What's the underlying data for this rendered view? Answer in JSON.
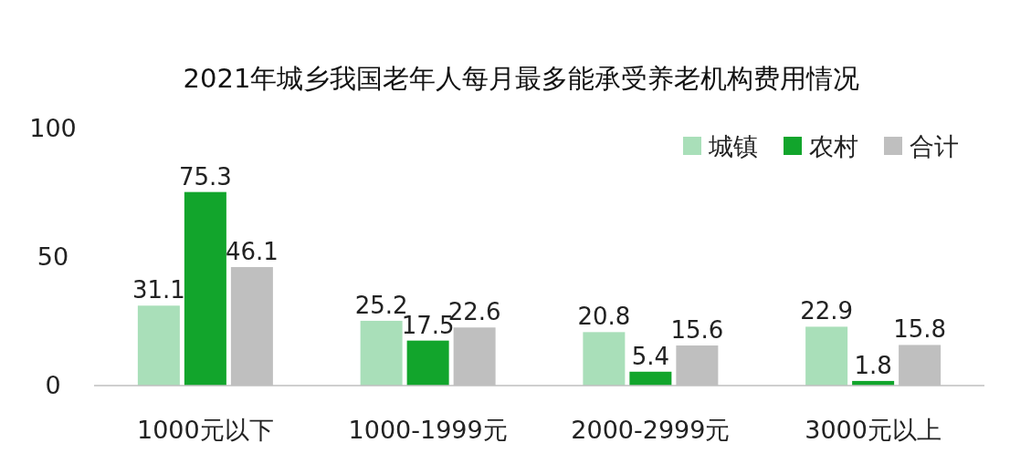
{
  "chart_data": {
    "type": "bar",
    "title": "2021年城乡我国老年人每月最多能承受养老机构费用情况",
    "categories": [
      "1000元以下",
      "1000-1999元",
      "2000-2999元",
      "3000元以上"
    ],
    "series": [
      {
        "name": "城镇",
        "color": "#a9dfb9",
        "values": [
          31.1,
          25.2,
          20.8,
          22.9
        ]
      },
      {
        "name": "农村",
        "color": "#12a52c",
        "values": [
          75.3,
          17.5,
          5.4,
          1.8
        ]
      },
      {
        "name": "合计",
        "color": "#bfbfbf",
        "values": [
          46.1,
          22.6,
          15.6,
          15.8
        ]
      }
    ],
    "ylim": [
      0,
      100
    ],
    "yticks": [
      0,
      50,
      100
    ],
    "data_labels": true,
    "legend": "top right",
    "grid": false
  }
}
